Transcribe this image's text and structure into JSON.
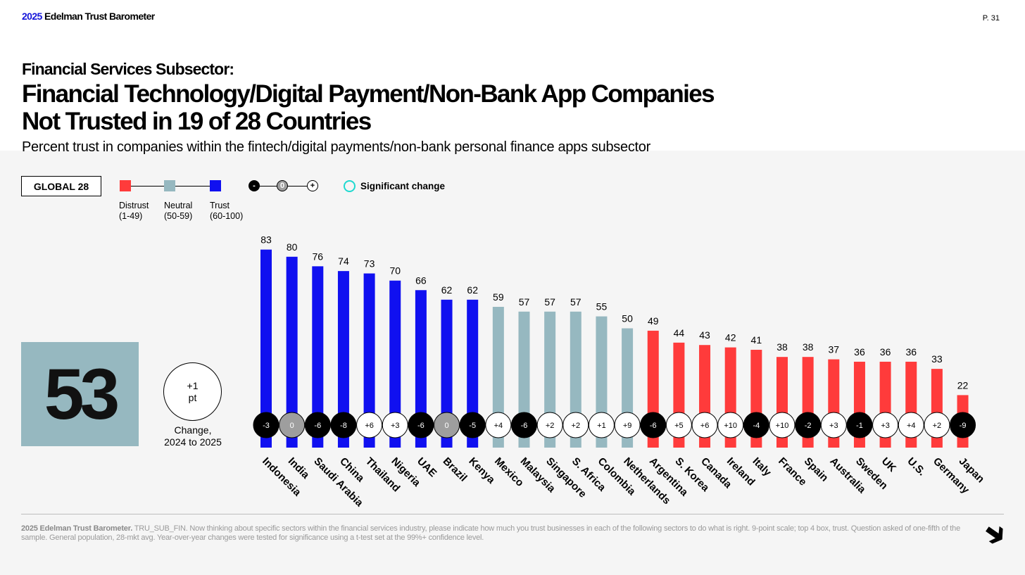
{
  "header": {
    "brand_year": "2025",
    "brand_name": "Edelman Trust Barometer",
    "page_no": "P. 31"
  },
  "title": {
    "kicker": "Financial Services Subsector:",
    "headline_1": "Financial Technology/Digital Payment/Non-Bank App Companies",
    "headline_2": "Not Trusted in 19 of 28 Countries",
    "subhead": "Percent trust in companies within the fintech/digital payments/non-bank personal finance apps subsector"
  },
  "legend": {
    "global_label": "GLOBAL 28",
    "distrust": "Distrust",
    "distrust_range": "(1-49)",
    "neutral": "Neutral",
    "neutral_range": "(50-59)",
    "trust": "Trust",
    "trust_range": "(60-100)",
    "change_minus": "-",
    "change_zero": "0",
    "change_plus": "+",
    "significant": "Significant change"
  },
  "global": {
    "value": "53",
    "change_1": "+1",
    "change_2": "pt",
    "change_caption_1": "Change,",
    "change_caption_2": "2024 to 2025"
  },
  "colors": {
    "distrust": "#ff3b3b",
    "neutral": "#96b8c0",
    "trust": "#1010f0",
    "significant_ring": "#1fd9d0"
  },
  "chart_data": {
    "type": "bar",
    "title": "Percent trust in companies within the fintech/digital payments/non-bank personal finance apps subsector",
    "ylim": [
      0,
      100
    ],
    "grid": false,
    "categories": [
      "Indonesia",
      "India",
      "Saudi Arabia",
      "China",
      "Thailand",
      "Nigeria",
      "UAE",
      "Brazil",
      "Kenya",
      "Mexico",
      "Malaysia",
      "Singapore",
      "S. Africa",
      "Colombia",
      "Netherlands",
      "Argentina",
      "S. Korea",
      "Canada",
      "Ireland",
      "Italy",
      "France",
      "Spain",
      "Australia",
      "Sweden",
      "UK",
      "U.S.",
      "Germany",
      "Japan"
    ],
    "values": [
      83,
      80,
      76,
      74,
      73,
      70,
      66,
      62,
      62,
      59,
      57,
      57,
      57,
      55,
      50,
      49,
      44,
      43,
      42,
      41,
      38,
      38,
      37,
      36,
      36,
      36,
      33,
      22
    ],
    "changes": [
      "-3",
      "0",
      "-6",
      "-8",
      "+6",
      "+3",
      "-6",
      "0",
      "-5",
      "+4",
      "-6",
      "+2",
      "+2",
      "+1",
      "+9",
      "-6",
      "+5",
      "+6",
      "+10",
      "-4",
      "+10",
      "-2",
      "+3",
      "-1",
      "+3",
      "+4",
      "+2",
      "-9"
    ]
  },
  "footer": {
    "bold": "2025 Edelman Trust Barometer.",
    "text": " TRU_SUB_FIN. Now thinking about specific sectors within the financial services industry, please indicate how much you trust businesses in each of the following sectors to do what is right. 9-point scale; top 4 box, trust. Question asked of one-fifth of the sample. General population, 28-mkt avg. Year-over-year changes were tested for significance using a t-test set at the 99%+ confidence level."
  }
}
